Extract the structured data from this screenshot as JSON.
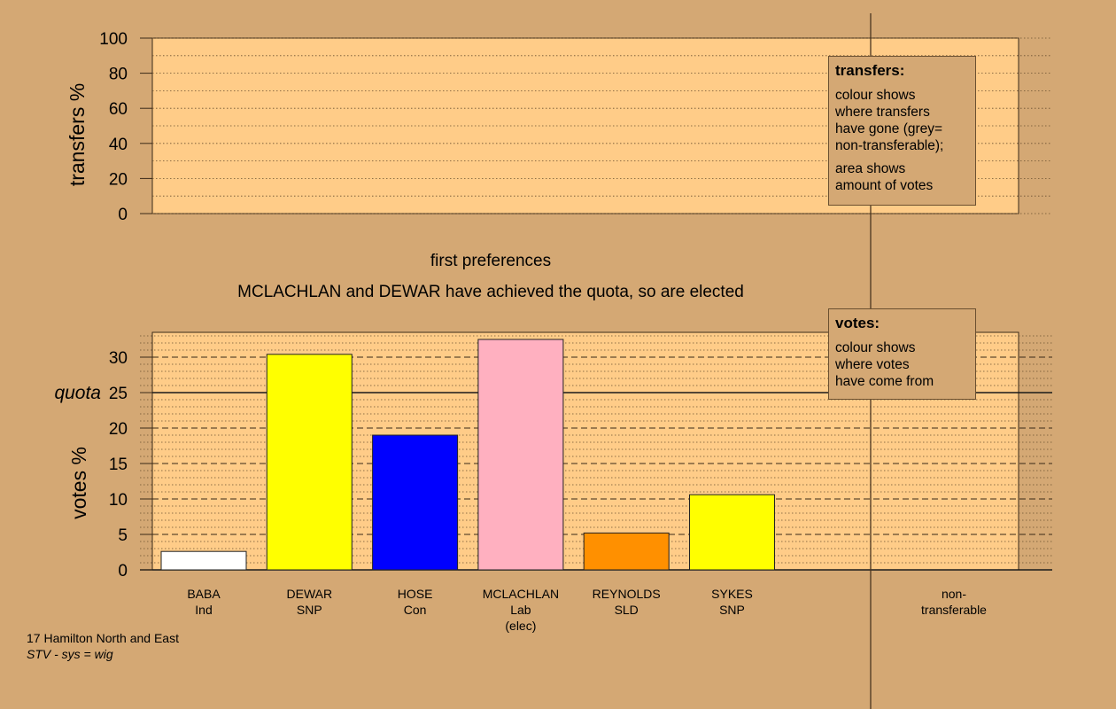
{
  "chart_data": [
    {
      "type": "bar",
      "ylabel": "transfers %",
      "ylim": [
        0,
        100
      ],
      "yticks": [
        "0",
        "20",
        "40",
        "60",
        "80",
        "100"
      ],
      "yticks_values": [
        0,
        20,
        40,
        60,
        80,
        100
      ],
      "values": []
    },
    {
      "type": "bar",
      "title": "first preferences",
      "subtitle": "MCLACHLAN and DEWAR have achieved the quota, so are elected",
      "ylabel": "votes %",
      "ylim": [
        0,
        33.5
      ],
      "yticks": [
        "0",
        "5",
        "10",
        "15",
        "20",
        "25",
        "30"
      ],
      "yticks_values": [
        0,
        5,
        10,
        15,
        20,
        25,
        30
      ],
      "quota": 25,
      "quota_label": "quota",
      "categories": [
        {
          "name": "BABA",
          "party": "Ind",
          "status": "",
          "value": 2.6,
          "color": "#ffffff"
        },
        {
          "name": "DEWAR",
          "party": "SNP",
          "status": "",
          "value": 30.4,
          "color": "#ffff00"
        },
        {
          "name": "HOSE",
          "party": "Con",
          "status": "",
          "value": 19.0,
          "color": "#0000ff"
        },
        {
          "name": "MCLACHLAN",
          "party": "Lab",
          "status": "(elec)",
          "value": 32.5,
          "color": "#ffb0c0"
        },
        {
          "name": "REYNOLDS",
          "party": "SLD",
          "status": "",
          "value": 5.2,
          "color": "#ff9000"
        },
        {
          "name": "SYKES",
          "party": "SNP",
          "status": "",
          "value": 10.6,
          "color": "#ffff00"
        }
      ],
      "extra_category": {
        "line1": "non-",
        "line2": "transferable"
      },
      "grid": true
    }
  ],
  "legends": {
    "transfers": {
      "title": "transfers:",
      "lines1": [
        "colour shows",
        "where transfers",
        "have gone (grey=",
        "non-transferable);"
      ],
      "lines2": [
        "area shows",
        "amount of votes"
      ]
    },
    "votes": {
      "title": "votes:",
      "lines1": [
        "colour shows",
        "where votes",
        "have come from"
      ]
    }
  },
  "footnote": {
    "line1": "17 Hamilton North and East",
    "line2": "STV - sys = wig"
  },
  "colors": {
    "background": "#d4a874",
    "plot_area": "#ffcc88"
  }
}
